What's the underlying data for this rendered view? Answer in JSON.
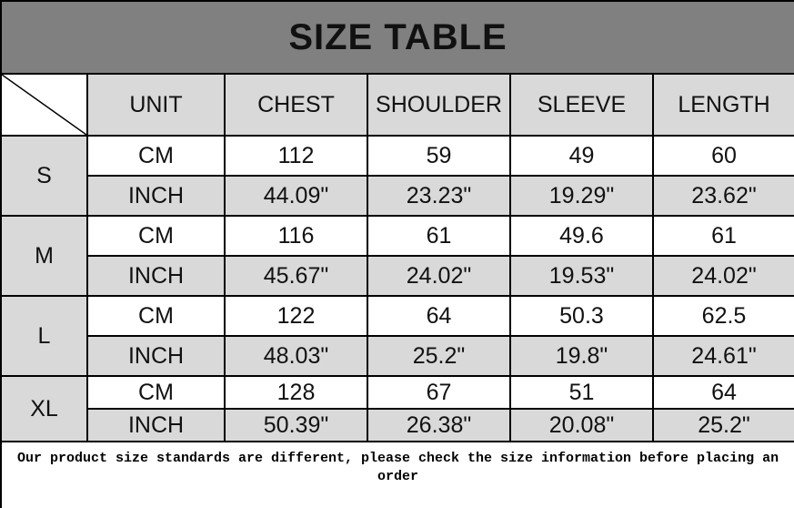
{
  "title": "SIZE TABLE",
  "columns": [
    "UNIT",
    "CHEST",
    "SHOULDER",
    "SLEEVE",
    "LENGTH"
  ],
  "sizes": [
    {
      "size": "S",
      "cm": {
        "unit": "CM",
        "values": [
          "112",
          "59",
          "49",
          "60"
        ]
      },
      "inch": {
        "unit": "INCH",
        "values": [
          "44.09\"",
          "23.23\"",
          "19.29\"",
          "23.62\""
        ]
      }
    },
    {
      "size": "M",
      "cm": {
        "unit": "CM",
        "values": [
          "116",
          "61",
          "49.6",
          "61"
        ]
      },
      "inch": {
        "unit": "INCH",
        "values": [
          "45.67\"",
          "24.02\"",
          "19.53\"",
          "24.02\""
        ]
      }
    },
    {
      "size": "L",
      "cm": {
        "unit": "CM",
        "values": [
          "122",
          "64",
          "50.3",
          "62.5"
        ]
      },
      "inch": {
        "unit": "INCH",
        "values": [
          "48.03\"",
          "25.2\"",
          "19.8\"",
          "24.61\""
        ]
      }
    },
    {
      "size": "XL",
      "cm": {
        "unit": "CM",
        "values": [
          "128",
          "67",
          "51",
          "64"
        ]
      },
      "inch": {
        "unit": "INCH",
        "values": [
          "50.39\"",
          "26.38\"",
          "20.08\"",
          "25.2\""
        ]
      }
    }
  ],
  "note": "Our product size standards are different, please check the size information before placing an order",
  "colors": {
    "title_bg": "#808080",
    "cell_gray": "#d9d9d9",
    "cell_white": "#ffffff"
  }
}
